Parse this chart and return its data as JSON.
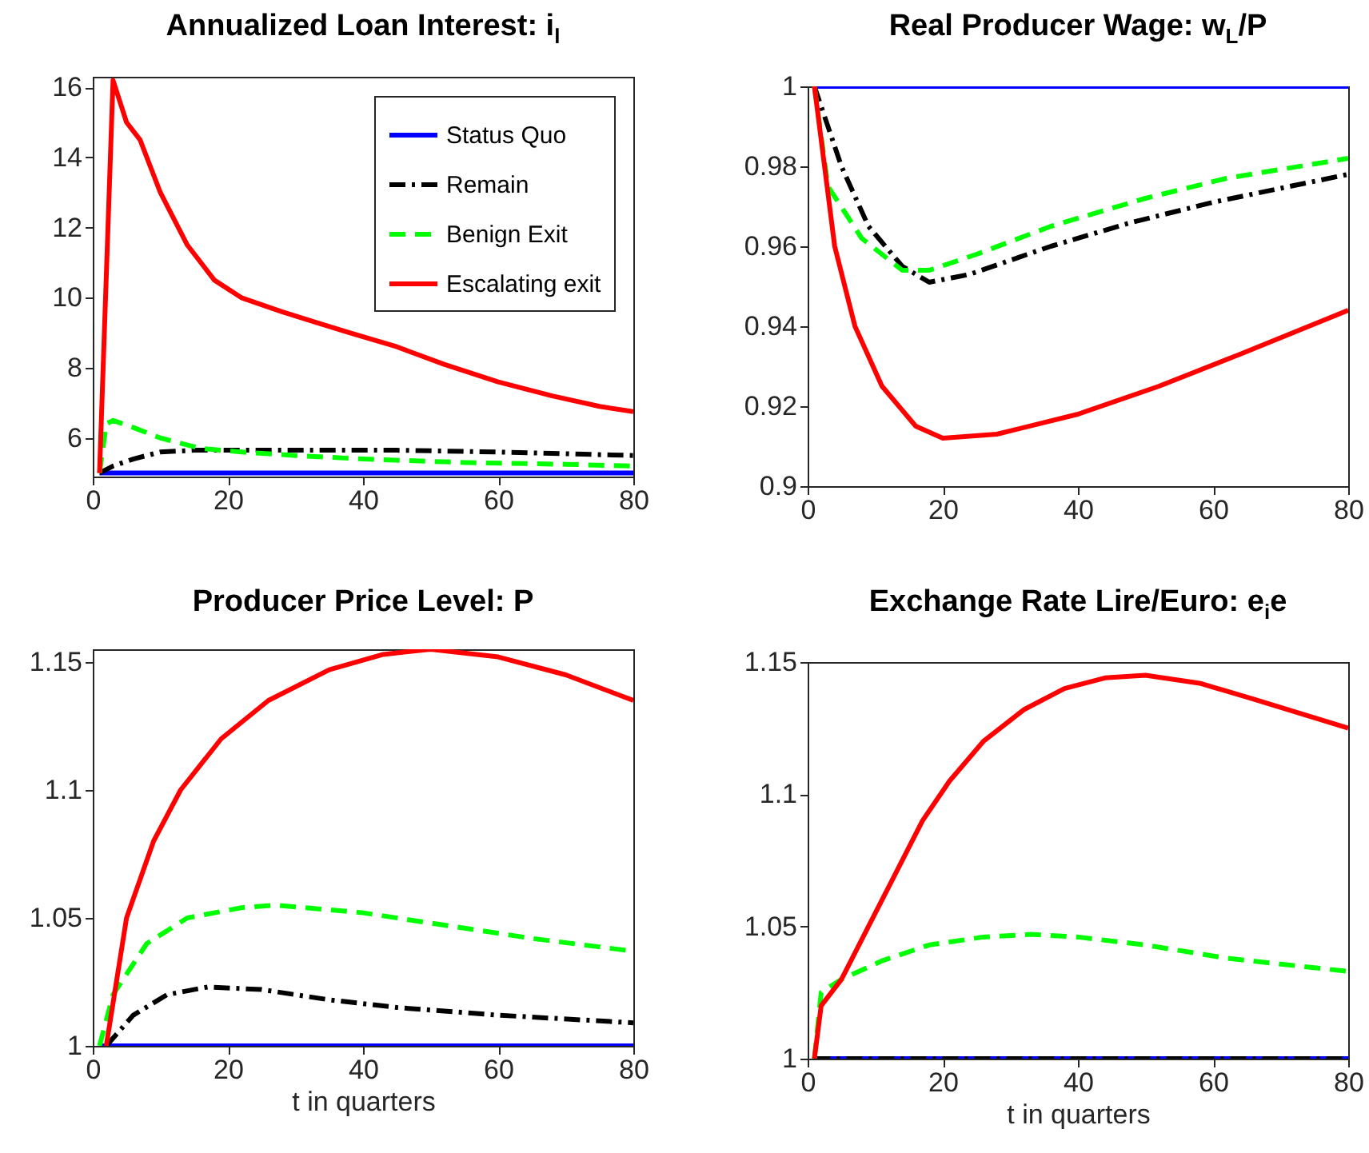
{
  "chart_data": [
    {
      "type": "line",
      "title": "Annualized Loan Interest: i$_{l}$",
      "xlim": [
        0,
        80
      ],
      "xticks": [
        0,
        20,
        40,
        60,
        80
      ],
      "ylim": [
        4.9,
        16.3
      ],
      "yticks": [
        6,
        8,
        10,
        12,
        14,
        16
      ],
      "grid": false,
      "legend": "top right",
      "series": [
        {
          "name": "Status Quo",
          "color": "#0000ff",
          "line_style": "solid",
          "x": [
            1,
            80
          ],
          "values": [
            5,
            5
          ]
        },
        {
          "name": "Remain",
          "color": "#000000",
          "line_style": "dashdot",
          "x": [
            1,
            3,
            6,
            10,
            15,
            30,
            45,
            60,
            80
          ],
          "values": [
            5,
            5.2,
            5.4,
            5.6,
            5.65,
            5.65,
            5.65,
            5.6,
            5.5
          ]
        },
        {
          "name": "Benign Exit",
          "color": "#00ff00",
          "line_style": "dashed",
          "x": [
            1,
            2,
            3,
            6,
            10,
            16,
            22,
            30,
            40,
            55,
            70,
            80
          ],
          "values": [
            5,
            6.4,
            6.5,
            6.3,
            6.0,
            5.7,
            5.6,
            5.5,
            5.4,
            5.3,
            5.25,
            5.2
          ]
        },
        {
          "name": "Escalating exit",
          "color": "#ff0000",
          "line_style": "solid",
          "x": [
            1,
            3,
            5,
            7,
            10,
            14,
            18,
            22,
            28,
            33,
            38,
            45,
            52,
            60,
            68,
            75,
            80
          ],
          "values": [
            5,
            16.2,
            15,
            14.5,
            13,
            11.5,
            10.5,
            10.0,
            9.6,
            9.3,
            9.0,
            8.6,
            8.1,
            7.6,
            7.2,
            6.9,
            6.75
          ]
        }
      ]
    },
    {
      "type": "line",
      "title": "Real Producer Wage: w$_{L}$/P",
      "xlim": [
        0,
        80
      ],
      "xticks": [
        0,
        20,
        40,
        60,
        80
      ],
      "ylim": [
        0.9,
        1
      ],
      "yticks": [
        0.9,
        0.92,
        0.94,
        0.96,
        0.98,
        1
      ],
      "grid": false,
      "series": [
        {
          "color": "#0000ff",
          "line_style": "solid",
          "x": [
            1,
            80
          ],
          "values": [
            1,
            1
          ]
        },
        {
          "color": "#000000",
          "line_style": "dashdot",
          "x": [
            1,
            5,
            9,
            14,
            18,
            24,
            36,
            48,
            60,
            80
          ],
          "values": [
            1,
            0.98,
            0.965,
            0.955,
            0.951,
            0.953,
            0.96,
            0.966,
            0.971,
            0.978
          ]
        },
        {
          "color": "#00ff00",
          "line_style": "dashed",
          "x": [
            1,
            3,
            8,
            14,
            18,
            25,
            36,
            50,
            62,
            80
          ],
          "values": [
            1,
            0.975,
            0.962,
            0.954,
            0.954,
            0.958,
            0.965,
            0.972,
            0.977,
            0.982
          ]
        },
        {
          "color": "#ff0000",
          "line_style": "solid",
          "x": [
            1,
            4,
            7,
            11,
            16,
            20,
            28,
            40,
            52,
            64,
            80
          ],
          "values": [
            1,
            0.96,
            0.94,
            0.925,
            0.915,
            0.912,
            0.913,
            0.918,
            0.925,
            0.933,
            0.944
          ]
        }
      ]
    },
    {
      "type": "line",
      "title": "Producer Price Level: P",
      "xlabel": "t in quarters",
      "xlim": [
        0,
        80
      ],
      "xticks": [
        0,
        20,
        40,
        60,
        80
      ],
      "ylim": [
        1,
        1.155
      ],
      "yticks": [
        1,
        1.05,
        1.1,
        1.15
      ],
      "grid": false,
      "series": [
        {
          "color": "#0000ff",
          "line_style": "solid",
          "x": [
            1,
            80
          ],
          "values": [
            1,
            1
          ]
        },
        {
          "color": "#000000",
          "line_style": "dashdot",
          "x": [
            2,
            6,
            11,
            17,
            25,
            35,
            45,
            60,
            80
          ],
          "values": [
            1,
            1.012,
            1.02,
            1.023,
            1.022,
            1.018,
            1.015,
            1.012,
            1.009
          ]
        },
        {
          "color": "#00ff00",
          "line_style": "dashed",
          "x": [
            1,
            3,
            8,
            14,
            22,
            27,
            40,
            50,
            65,
            80
          ],
          "values": [
            1,
            1.02,
            1.04,
            1.05,
            1.054,
            1.055,
            1.052,
            1.048,
            1.042,
            1.037
          ]
        },
        {
          "color": "#ff0000",
          "line_style": "solid",
          "x": [
            2,
            5,
            9,
            13,
            19,
            26,
            35,
            43,
            50,
            60,
            70,
            80
          ],
          "values": [
            1,
            1.05,
            1.08,
            1.1,
            1.12,
            1.135,
            1.147,
            1.153,
            1.155,
            1.152,
            1.145,
            1.135
          ]
        }
      ]
    },
    {
      "type": "line",
      "title": "Exchange Rate Lire/Euro: e$_{i}$e",
      "xlabel": "t in quarters",
      "xlim": [
        0,
        80
      ],
      "xticks": [
        0,
        20,
        40,
        60,
        80
      ],
      "ylim": [
        1,
        1.15
      ],
      "yticks": [
        1,
        1.05,
        1.1,
        1.15
      ],
      "grid": false,
      "series": [
        {
          "color": "#0000ff",
          "line_style": "solid",
          "x": [
            1,
            80
          ],
          "values": [
            1,
            1
          ]
        },
        {
          "color": "#000000",
          "line_style": "dashdot",
          "x": [
            1,
            80
          ],
          "values": [
            1,
            1
          ]
        },
        {
          "color": "#00ff00",
          "line_style": "dashed",
          "x": [
            1,
            2,
            5,
            11,
            18,
            26,
            33,
            40,
            50,
            62,
            80
          ],
          "values": [
            1,
            1.025,
            1.03,
            1.037,
            1.043,
            1.046,
            1.047,
            1.046,
            1.043,
            1.038,
            1.033
          ]
        },
        {
          "color": "#ff0000",
          "line_style": "solid",
          "x": [
            1,
            2,
            5,
            9,
            13,
            17,
            21,
            26,
            32,
            38,
            44,
            50,
            58,
            66,
            80
          ],
          "values": [
            1,
            1.02,
            1.03,
            1.05,
            1.07,
            1.09,
            1.105,
            1.12,
            1.132,
            1.14,
            1.144,
            1.145,
            1.142,
            1.136,
            1.125
          ]
        }
      ]
    }
  ]
}
